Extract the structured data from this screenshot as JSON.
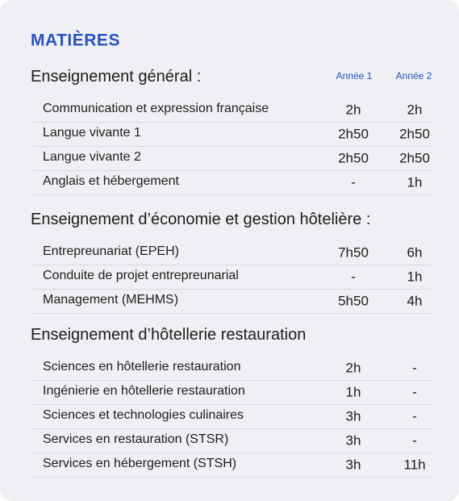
{
  "title": "MATIÈRES",
  "columns": [
    "Année 1",
    "Année 2"
  ],
  "sections": [
    {
      "heading": "Enseignement général :",
      "rows": [
        [
          "Communication et expression française",
          "2h",
          "2h"
        ],
        [
          "Langue vivante 1",
          "2h50",
          "2h50"
        ],
        [
          "Langue vivante 2",
          "2h50",
          "2h50"
        ],
        [
          "Anglais et hébergement",
          "-",
          "1h"
        ]
      ]
    },
    {
      "heading": "Enseignement d’économie et gestion hôtelière :",
      "rows": [
        [
          "Entrepreunariat (EPEH)",
          "7h50",
          "6h"
        ],
        [
          "Conduite de projet entrepreunarial",
          "-",
          "1h"
        ],
        [
          "Management (MEHMS)",
          "5h50",
          "4h"
        ]
      ]
    },
    {
      "heading": "Enseignement d’hôtellerie restauration",
      "rows": [
        [
          "Sciences en hôtellerie restauration",
          "2h",
          "-"
        ],
        [
          "Ingénierie en hôtellerie restauration",
          "1h",
          "-"
        ],
        [
          "Sciences et technologies culinaires",
          "3h",
          "-"
        ],
        [
          "Services en restauration (STSR)",
          "3h",
          "-"
        ],
        [
          "Services en hébergement (STSH)",
          "3h",
          "11h"
        ]
      ]
    }
  ]
}
